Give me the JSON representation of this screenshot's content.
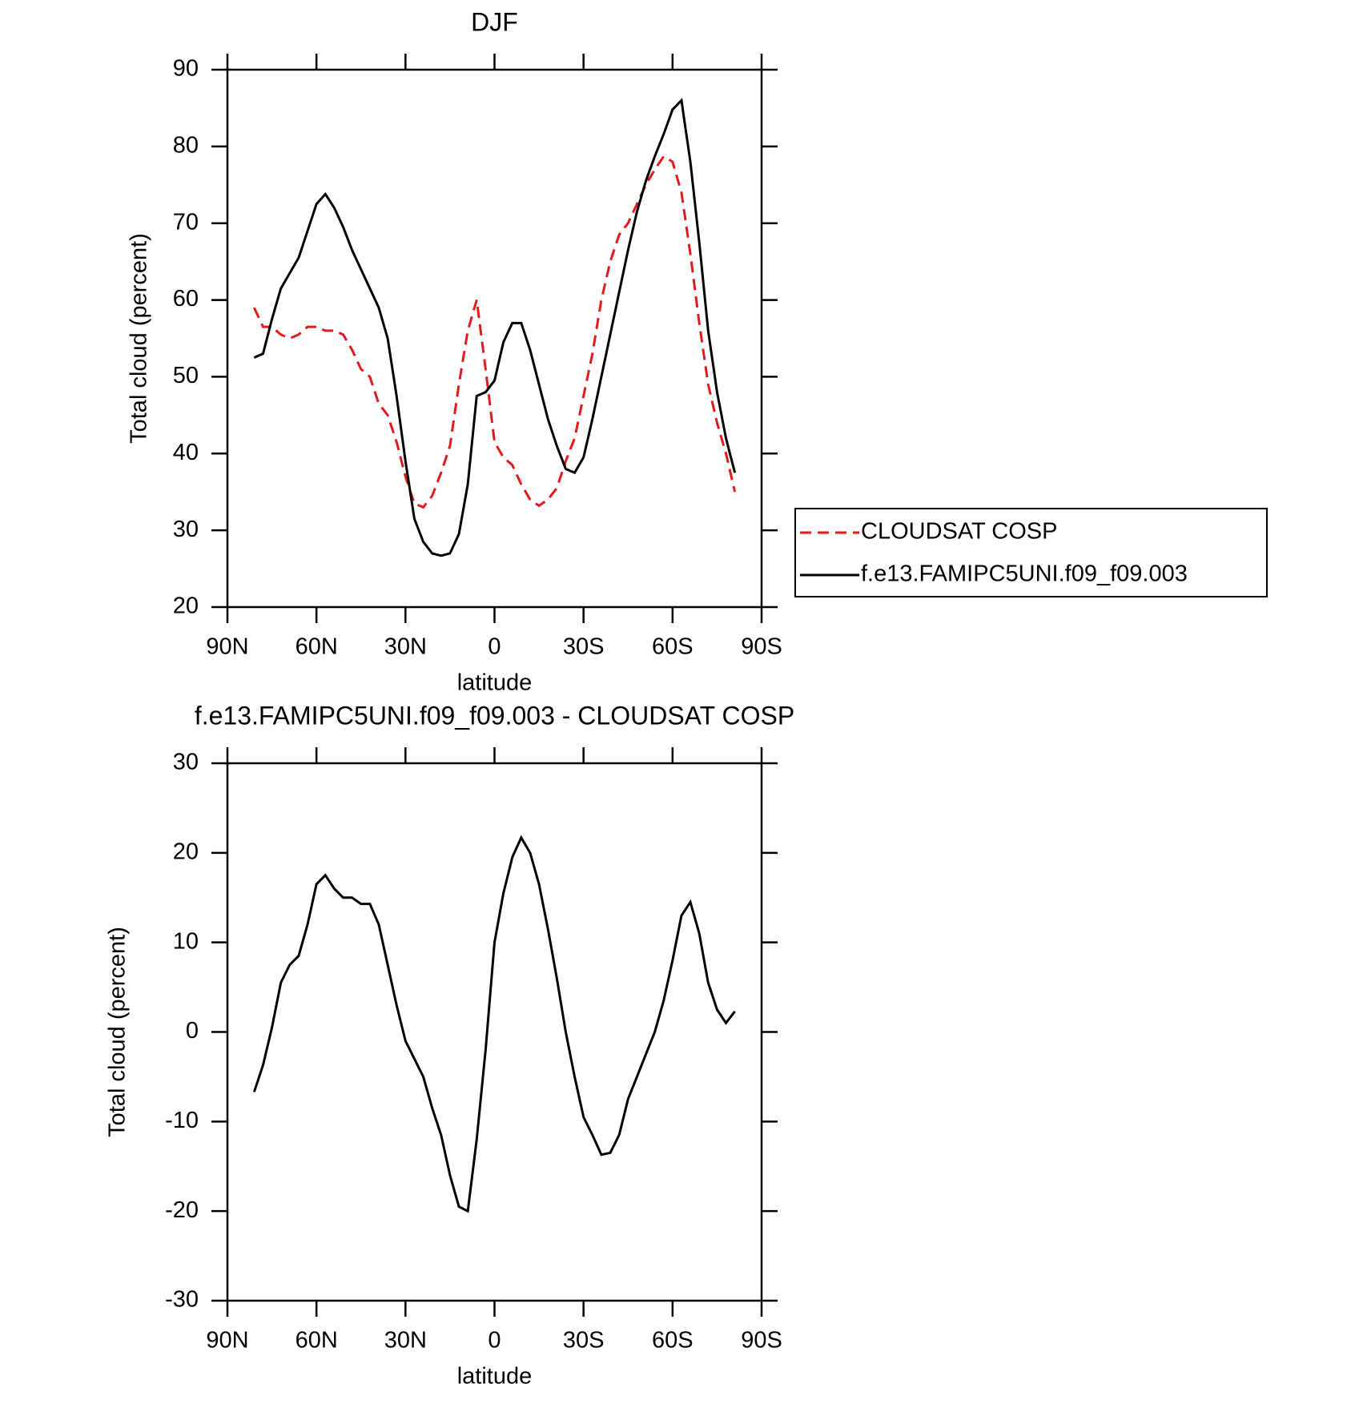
{
  "chart_data": [
    {
      "type": "line",
      "title": "DJF",
      "xlabel": "latitude",
      "ylabel": "Total cloud (percent)",
      "xlim": [
        90,
        -90
      ],
      "ylim": [
        20,
        90
      ],
      "xticks": [
        {
          "value": 90,
          "label": "90N"
        },
        {
          "value": 60,
          "label": "60N"
        },
        {
          "value": 30,
          "label": "30N"
        },
        0,
        {
          "value": -30,
          "label": "30S"
        },
        {
          "value": -60,
          "label": "60S"
        },
        {
          "value": -90,
          "label": "90S"
        }
      ],
      "yticks": [
        20,
        30,
        40,
        50,
        60,
        70,
        80,
        90
      ],
      "legend": true,
      "x": [
        81,
        78,
        75,
        72,
        69,
        66,
        63,
        60,
        57,
        54,
        51,
        48,
        45,
        42,
        39,
        36,
        33,
        30,
        27,
        24,
        21,
        18,
        15,
        12,
        9,
        6,
        3,
        0,
        -3,
        -6,
        -9,
        -12,
        -15,
        -18,
        -21,
        -24,
        -27,
        -30,
        -33,
        -36,
        -39,
        -42,
        -45,
        -48,
        -51,
        -54,
        -57,
        -60,
        -63,
        -66,
        -69,
        -72,
        -75,
        -78,
        -81
      ],
      "series": [
        {
          "name": "CLOUDSAT COSP",
          "color": "#e31a1c",
          "style": "dashed",
          "values": [
            59,
            56.5,
            56.5,
            55.5,
            55,
            55.5,
            56.5,
            56.5,
            56,
            56,
            55.5,
            53.5,
            51,
            50,
            46.5,
            45,
            41.5,
            37,
            33.5,
            33,
            34.5,
            37.5,
            41,
            49,
            56,
            60,
            51,
            41.5,
            39.5,
            38.5,
            36,
            34,
            33.2,
            34,
            35.5,
            39,
            42,
            47.5,
            53,
            60,
            65,
            68.5,
            70,
            72.5,
            75,
            77,
            78.7,
            78,
            74,
            66,
            57,
            49,
            44,
            40,
            35
          ]
        },
        {
          "name": "f.e13.FAMIPC5UNI.f09_f09.003",
          "color": "#000000",
          "style": "solid",
          "values": [
            52.5,
            53,
            57.5,
            61.5,
            63.5,
            65.5,
            69,
            72.5,
            73.8,
            72,
            69.5,
            66.5,
            64,
            61.5,
            59,
            55,
            47.5,
            39,
            31.5,
            28.5,
            27,
            26.7,
            27,
            29.5,
            36,
            47.5,
            48,
            49.5,
            54.5,
            57,
            57,
            53.5,
            49,
            44.5,
            41,
            38,
            37.5,
            39.5,
            44.5,
            50,
            55.5,
            61,
            66.5,
            71.5,
            75.5,
            78.7,
            81.6,
            84.8,
            86,
            78,
            67.5,
            56,
            48,
            42,
            37.5
          ]
        }
      ]
    },
    {
      "type": "line",
      "title": "f.e13.FAMIPC5UNI.f09_f09.003 - CLOUDSAT COSP",
      "xlabel": "latitude",
      "ylabel": "Total cloud (percent)",
      "xlim": [
        90,
        -90
      ],
      "ylim": [
        -30,
        30
      ],
      "xticks": [
        {
          "value": 90,
          "label": "90N"
        },
        {
          "value": 60,
          "label": "60N"
        },
        {
          "value": 30,
          "label": "30N"
        },
        0,
        {
          "value": -30,
          "label": "30S"
        },
        {
          "value": -60,
          "label": "60S"
        },
        {
          "value": -90,
          "label": "90S"
        }
      ],
      "yticks": [
        -30,
        -20,
        -10,
        0,
        10,
        20,
        30
      ],
      "legend": false,
      "x": [
        81,
        78,
        75,
        72,
        69,
        66,
        63,
        60,
        57,
        54,
        51,
        48,
        45,
        42,
        39,
        36,
        33,
        30,
        27,
        24,
        21,
        18,
        15,
        12,
        9,
        6,
        3,
        0,
        -3,
        -6,
        -9,
        -12,
        -15,
        -18,
        -21,
        -24,
        -27,
        -30,
        -33,
        -36,
        -39,
        -42,
        -45,
        -48,
        -51,
        -54,
        -57,
        -60,
        -63,
        -66,
        -69,
        -72,
        -75,
        -78,
        -81
      ],
      "series": [
        {
          "color": "#000000",
          "style": "solid",
          "values": [
            -6.7,
            -3.7,
            0.5,
            5.5,
            7.5,
            8.5,
            12,
            16.5,
            17.5,
            16,
            15,
            15,
            14.3,
            14.3,
            12,
            7.5,
            3,
            -1,
            -3,
            -5,
            -8.5,
            -11.5,
            -16,
            -19.5,
            -20,
            -12,
            -2,
            10,
            15.5,
            19.5,
            21.7,
            20,
            16.5,
            11.5,
            6,
            0,
            -5,
            -9.5,
            -11.5,
            -13.7,
            -13.5,
            -11.5,
            -7.5,
            -5,
            -2.5,
            0,
            3.5,
            8,
            13,
            14.5,
            11,
            5.5,
            2.5,
            1,
            2.3
          ]
        }
      ]
    }
  ]
}
